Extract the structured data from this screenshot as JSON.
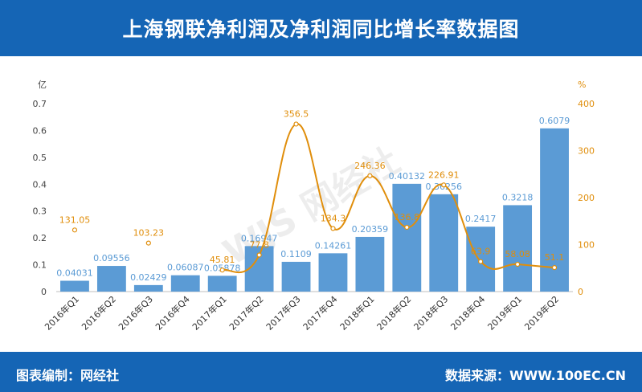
{
  "header": {
    "title": "上海钢联净利润及净利润同比增长率数据图"
  },
  "footer": {
    "left_label": "图表编制：网经社",
    "right_label": "数据来源：WWW.100EC.CN"
  },
  "watermark": "WJS 网经社",
  "colors": {
    "header": "#1565b5",
    "bar": "#5b9bd5",
    "line": "#e08e0b",
    "axis_left": "#444444"
  },
  "chart_data": {
    "type": "bar",
    "categories": [
      "2016年Q1",
      "2016年Q2",
      "2016年Q3",
      "2016年Q4",
      "2017年Q1",
      "2017年Q2",
      "2017年Q3",
      "2017年Q4",
      "2018年Q1",
      "2018年Q2",
      "2018年Q3",
      "2018年Q4",
      "2019年Q1",
      "2019年Q2"
    ],
    "y_left": {
      "unit": "亿",
      "ylim": [
        0,
        0.7
      ],
      "ticks": [
        "0",
        "0.1",
        "0.2",
        "0.3",
        "0.4",
        "0.5",
        "0.6",
        "0.7"
      ],
      "tick_values": [
        0,
        0.1,
        0.2,
        0.3,
        0.4,
        0.5,
        0.6,
        0.7
      ]
    },
    "y_right": {
      "unit": "%",
      "ylim": [
        0,
        400
      ],
      "ticks": [
        "0",
        "100",
        "200",
        "300",
        "400"
      ],
      "tick_values": [
        0,
        100,
        200,
        300,
        400
      ]
    },
    "series": [
      {
        "type": "bar",
        "axis": "left",
        "values": [
          0.04031,
          0.09556,
          0.02429,
          0.06087,
          0.05878,
          0.16947,
          0.1109,
          0.14261,
          0.20359,
          0.40132,
          0.36256,
          0.2417,
          0.3218,
          0.6079
        ],
        "labels": [
          "0.04031",
          "0.09556",
          "0.02429",
          "0.06087",
          "0.05878",
          "0.16947",
          "0.1109",
          "0.14261",
          "0.20359",
          "0.40132",
          "0.36256",
          "0.2417",
          "0.3218",
          "0.6079"
        ]
      },
      {
        "type": "line",
        "axis": "right",
        "values": [
          131.05,
          null,
          103.23,
          null,
          45.81,
          77.8,
          356.5,
          134.3,
          246.36,
          136.8,
          226.91,
          63.9,
          58.08,
          51.1
        ],
        "labels": [
          "131.05",
          "",
          "103.23",
          "",
          "45.81",
          "77.8",
          "356.5",
          "134.3",
          "246.36",
          "136.8",
          "226.91",
          "63.9",
          "58.08",
          "51.1"
        ]
      }
    ]
  }
}
